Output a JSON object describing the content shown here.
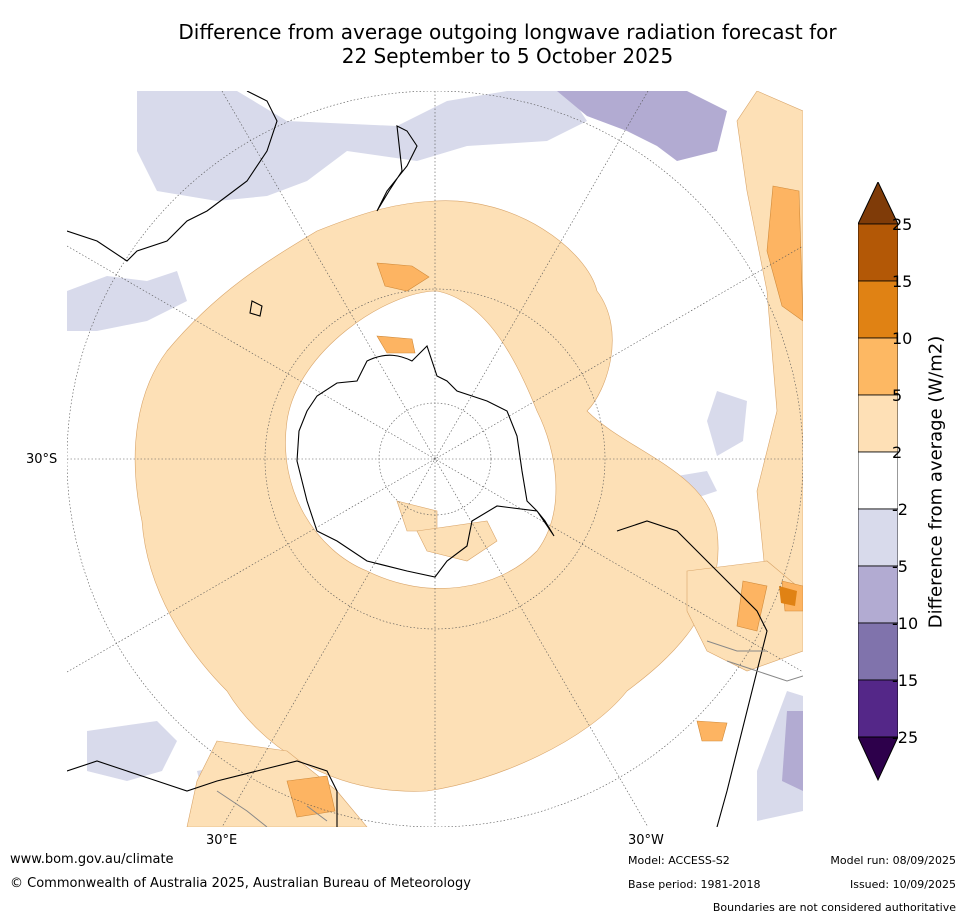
{
  "title_line1": "Difference from average outgoing longwave radiation forecast for",
  "title_line2": "22 September to 5 October 2025",
  "map": {
    "projection": "south polar stereographic",
    "lat_label": "30°S",
    "lon_labels": [
      "30°E",
      "30°W"
    ],
    "colors": {
      "anom_2_5": "#fde0b6",
      "anom_5_10": "#fdb462",
      "anom_10_15": "#e08214",
      "anom_neg2_neg5": "#d8daeb",
      "anom_neg5_neg10": "#b2abd2",
      "coast": "#000000",
      "boundary": "#888888"
    }
  },
  "colorbar": {
    "label": "Difference from average (W/m2)",
    "ticks": [
      "25",
      "15",
      "10",
      "5",
      "2",
      "-2",
      "-5",
      "-10",
      "-15",
      "-25"
    ],
    "colors": [
      "#7f3b08",
      "#b35806",
      "#e08214",
      "#fdb863",
      "#fee0b6",
      "#ffffff",
      "#d8daeb",
      "#b2abd2",
      "#8073ac",
      "#542788",
      "#2d004b"
    ]
  },
  "footer": {
    "url": "www.bom.gov.au/climate",
    "copyright": "© Commonwealth of Australia 2025, Australian Bureau of Meteorology",
    "model": "Model: ACCESS-S2",
    "base_period": "Base period: 1981-2018",
    "model_run": "Model run: 08/09/2025",
    "issued": "Issued: 10/09/2025",
    "disclaimer": "Boundaries are not considered authoritative"
  }
}
